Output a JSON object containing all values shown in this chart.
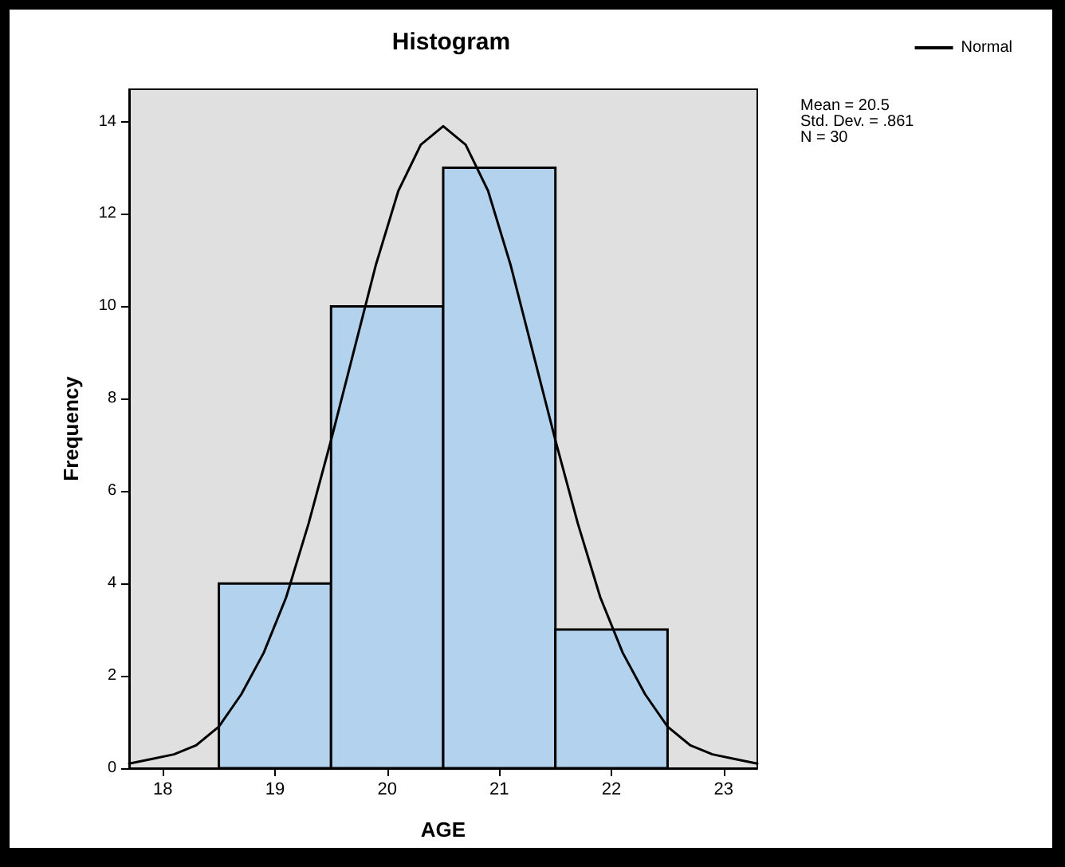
{
  "chart_data": {
    "type": "histogram",
    "title": "Histogram",
    "xlabel": "AGE",
    "ylabel": "Frequency",
    "bins": [
      18.5,
      19.5,
      20.5,
      21.5,
      22.5
    ],
    "values": [
      4,
      10,
      13,
      3
    ],
    "color": "#b3d2ee",
    "series": [
      {
        "type": "line",
        "name": "Normal",
        "color": "#000000",
        "x": [
          17.7,
          17.9,
          18.1,
          18.3,
          18.5,
          18.7,
          18.9,
          19.1,
          19.3,
          19.5,
          19.7,
          19.9,
          20.1,
          20.3,
          20.5,
          20.7,
          20.9,
          21.1,
          21.3,
          21.5,
          21.7,
          21.9,
          22.1,
          22.3,
          22.5,
          22.7,
          22.9,
          23.1,
          23.3
        ],
        "values": [
          0.1,
          0.2,
          0.3,
          0.5,
          0.9,
          1.6,
          2.5,
          3.7,
          5.3,
          7.1,
          9.0,
          10.9,
          12.5,
          13.5,
          13.9,
          13.5,
          12.5,
          10.9,
          9.0,
          7.1,
          5.3,
          3.7,
          2.5,
          1.6,
          0.9,
          0.5,
          0.3,
          0.2,
          0.1
        ]
      }
    ],
    "xlim": [
      17.7,
      23.3
    ],
    "xticks": [
      18,
      19,
      20,
      21,
      22,
      23
    ],
    "ylim": [
      0,
      14.7
    ],
    "yticks": [
      0,
      2,
      4,
      6,
      8,
      10,
      12,
      14
    ],
    "grid": false,
    "legend": "top right",
    "marker": "none",
    "line_style": "solid",
    "annotations": [
      "Mean = 20.5",
      "Std. Dev. = .861",
      "N = 30"
    ]
  }
}
